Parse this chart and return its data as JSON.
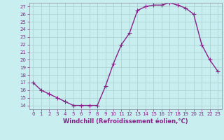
{
  "x": [
    0,
    1,
    2,
    3,
    4,
    5,
    6,
    7,
    8,
    9,
    10,
    11,
    12,
    13,
    14,
    15,
    16,
    17,
    18,
    19,
    20,
    21,
    22,
    23
  ],
  "y": [
    17,
    16,
    15.5,
    15,
    14.5,
    14,
    14,
    14,
    14,
    16.5,
    19.5,
    22,
    23.5,
    26.5,
    27,
    27.2,
    27.2,
    27.5,
    27.2,
    26.8,
    26,
    22,
    20,
    18.5
  ],
  "line_color": "#882288",
  "marker": "+",
  "marker_size": 4,
  "linewidth": 1.0,
  "xlabel": "Windchill (Refroidissement éolien,°C)",
  "xlabel_fontsize": 6,
  "yticks": [
    14,
    15,
    16,
    17,
    18,
    19,
    20,
    21,
    22,
    23,
    24,
    25,
    26,
    27
  ],
  "xticks": [
    0,
    1,
    2,
    3,
    4,
    5,
    6,
    7,
    8,
    9,
    10,
    11,
    12,
    13,
    14,
    15,
    16,
    17,
    18,
    19,
    20,
    21,
    22,
    23
  ],
  "xlim": [
    -0.5,
    23.5
  ],
  "ylim": [
    13.5,
    27.5
  ],
  "bg_color": "#c8eef0",
  "grid_color": "#aacccc",
  "tick_fontsize": 5,
  "tick_color": "#882288",
  "xlabel_color": "#882288"
}
